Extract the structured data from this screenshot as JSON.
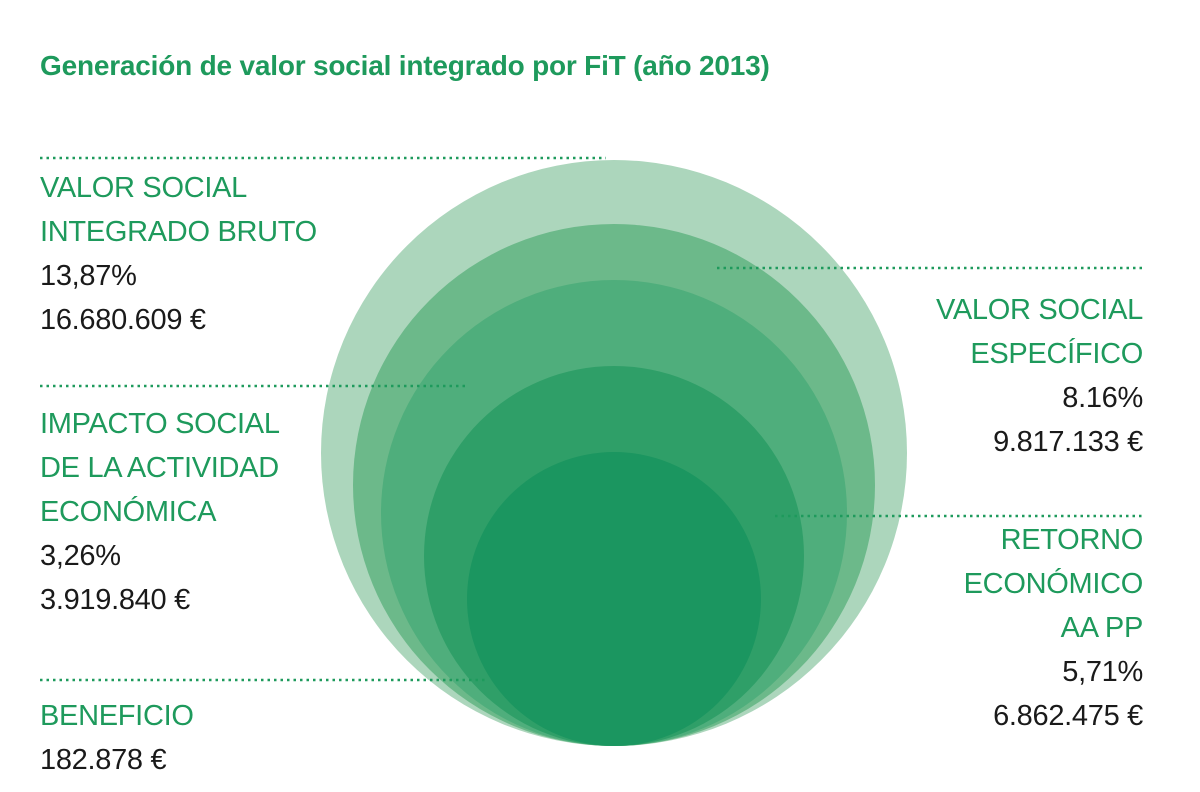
{
  "title": "Generación de valor social integrado por FiT (año 2013)",
  "colors": {
    "accent": "#1e9a5c",
    "text": "#1a1a1a",
    "circles": [
      "#acd6bc",
      "#6cb98a",
      "#4fae7c",
      "#2f9f68",
      "#1b9660"
    ]
  },
  "chart_data": {
    "type": "nested-circles",
    "title": "Generación de valor social integrado por FiT (año 2013)",
    "series": [
      {
        "name": "VALOR SOCIAL INTEGRADO BRUTO",
        "name_lines": [
          "VALOR SOCIAL",
          "INTEGRADO BRUTO"
        ],
        "percent": "13,87%",
        "amount": "16.680.609 €",
        "value": 16680609
      },
      {
        "name": "VALOR SOCIAL ESPECÍFICO",
        "name_lines": [
          "VALOR SOCIAL",
          "ESPECÍFICO"
        ],
        "percent": "8.16%",
        "amount": "9.817.133 €",
        "value": 9817133
      },
      {
        "name": "IMPACTO SOCIAL DE LA ACTIVIDAD ECONÓMICA",
        "name_lines": [
          "IMPACTO SOCIAL",
          "DE LA ACTIVIDAD",
          "ECONÓMICA"
        ],
        "percent": "3,26%",
        "amount": "3.919.840 €",
        "value": 3919840
      },
      {
        "name": "RETORNO ECONÓMICO AA PP",
        "name_lines": [
          "RETORNO",
          "ECONÓMICO",
          "AA PP"
        ],
        "percent": "5,71%",
        "amount": "6.862.475 €",
        "value": 6862475
      },
      {
        "name": "BENEFICIO",
        "name_lines": [
          "BENEFICIO"
        ],
        "percent": "",
        "amount": "182.878 €",
        "value": 182878
      }
    ]
  }
}
